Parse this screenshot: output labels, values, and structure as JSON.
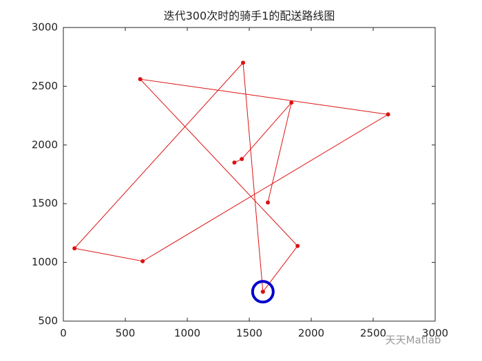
{
  "chart_data": {
    "type": "line",
    "title": "迭代300次时的骑手1的配送路线图",
    "series": [
      {
        "color": "#dd1111",
        "x": [
          1610,
          1450,
          90,
          640,
          2620,
          620,
          1890,
          1610,
          null,
          1650,
          1840,
          1440,
          1380
        ],
        "values": [
          750,
          2700,
          1120,
          1010,
          2260,
          2560,
          1140,
          750,
          null,
          1510,
          2360,
          1880,
          1850
        ]
      }
    ],
    "depot": {
      "x": 1610,
      "y": 750,
      "color": "#0000cc"
    },
    "xlim": [
      0,
      3000
    ],
    "xticks": [
      0,
      500,
      1000,
      1500,
      2000,
      2500,
      3000
    ],
    "ylim": [
      500,
      3000
    ],
    "yticks": [
      500,
      1000,
      1500,
      2000,
      2500,
      3000
    ],
    "watermark": "天天Matlab"
  }
}
